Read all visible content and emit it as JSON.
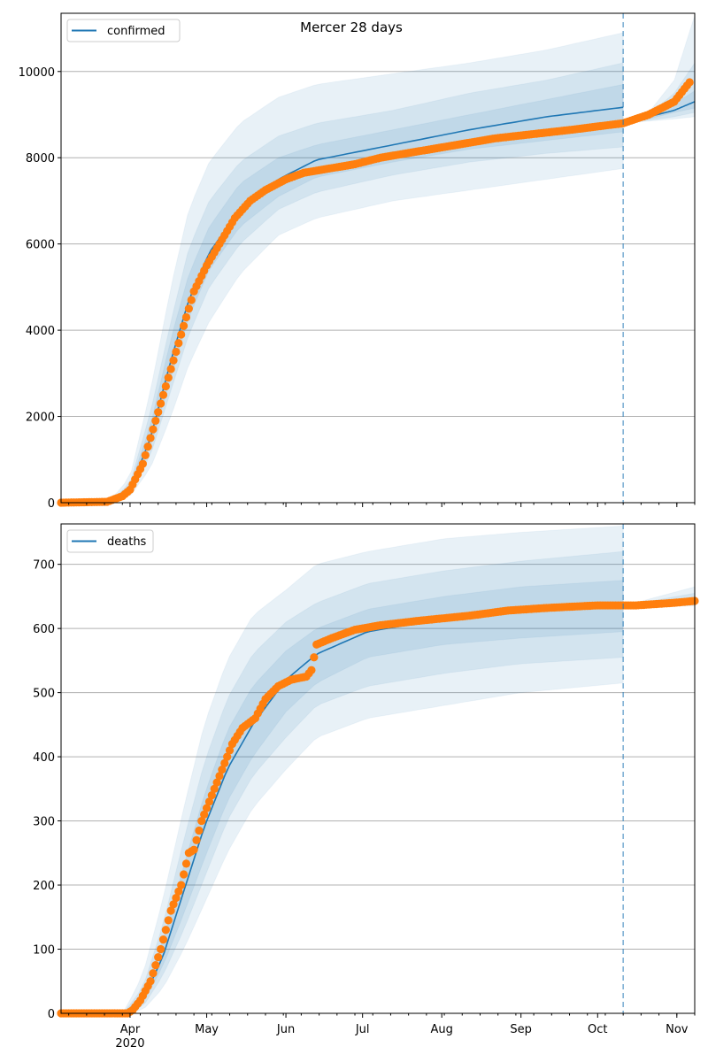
{
  "title": "Mercer 28 days",
  "colors": {
    "model": "#1f77b4",
    "observed": "#ff7f0e",
    "grid": "#b0b0b0"
  },
  "chart_data": [
    {
      "type": "line",
      "name": "confirmed",
      "legend": "confirmed",
      "legend_position": "top-left",
      "x_unit": "days since 2020-03-05",
      "xlim": [
        0,
        248
      ],
      "ylim": [
        0,
        11350
      ],
      "yticks": [
        0,
        2000,
        4000,
        6000,
        8000,
        10000
      ],
      "grid": true,
      "forecast_start_day": 220,
      "fit": {
        "days": [
          0,
          20,
          27,
          35,
          43,
          50,
          58,
          70,
          85,
          100,
          130,
          160,
          190,
          220
        ],
        "median": [
          0,
          50,
          300,
          1500,
          3300,
          4700,
          5800,
          6800,
          7500,
          7950,
          8300,
          8650,
          8950,
          9170
        ],
        "bands": [
          {
            "lo": [
              0,
              20,
              150,
              800,
              2000,
              3200,
              4200,
              5300,
              6200,
              6600,
              7000,
              7250,
              7500,
              7750
            ],
            "hi": [
              0,
              100,
              600,
              2600,
              5000,
              6800,
              7900,
              8800,
              9400,
              9700,
              9950,
              10200,
              10500,
              10900
            ]
          },
          {
            "lo": [
              0,
              30,
              200,
              1100,
              2600,
              3900,
              5000,
              6000,
              6800,
              7200,
              7600,
              7900,
              8100,
              8250
            ],
            "hi": [
              0,
              80,
              450,
              2100,
              4200,
              5900,
              7000,
              7900,
              8500,
              8800,
              9100,
              9500,
              9800,
              10200
            ]
          },
          {
            "lo": [
              0,
              40,
              250,
              1300,
              2900,
              4300,
              5400,
              6400,
              7100,
              7550,
              7900,
              8200,
              8400,
              8600
            ],
            "hi": [
              0,
              60,
              380,
              1800,
              3800,
              5300,
              6400,
              7400,
              8000,
              8300,
              8650,
              9000,
              9350,
              9700
            ]
          }
        ]
      },
      "forecast": {
        "days": [
          220,
          230,
          240,
          248
        ],
        "median": [
          8800,
          8950,
          9100,
          9300
        ],
        "bands": [
          {
            "lo": [
              8800,
              8850,
              8900,
              8950
            ],
            "hi": [
              8800,
              9050,
              9800,
              11300
            ]
          },
          {
            "lo": [
              8800,
              8870,
              8950,
              9050
            ],
            "hi": [
              8800,
              9000,
              9500,
              10200
            ]
          },
          {
            "lo": [
              8800,
              8900,
              9050,
              9150
            ],
            "hi": [
              8800,
              8950,
              9250,
              9550
            ]
          }
        ]
      },
      "observed": {
        "days": [
          0,
          18,
          24,
          27,
          32,
          36,
          40,
          44,
          48,
          52,
          57,
          62,
          68,
          74,
          80,
          88,
          95,
          105,
          115,
          125,
          140,
          155,
          170,
          185,
          200,
          220,
          230,
          240,
          246
        ],
        "values": [
          0,
          20,
          150,
          300,
          900,
          1700,
          2500,
          3300,
          4100,
          4900,
          5500,
          6000,
          6600,
          7000,
          7250,
          7500,
          7650,
          7750,
          7850,
          8000,
          8150,
          8300,
          8450,
          8550,
          8650,
          8800,
          9000,
          9300,
          9750
        ]
      }
    },
    {
      "type": "line",
      "name": "deaths",
      "legend": "deaths",
      "legend_position": "top-left",
      "x_unit": "days since 2020-03-05",
      "xlim": [
        0,
        248
      ],
      "ylim": [
        0,
        763
      ],
      "yticks": [
        0,
        100,
        200,
        300,
        400,
        500,
        600,
        700
      ],
      "grid": true,
      "forecast_start_day": 220,
      "fit": {
        "days": [
          0,
          25,
          32,
          40,
          48,
          56,
          65,
          75,
          88,
          100,
          120,
          150,
          180,
          220
        ],
        "median": [
          0,
          0,
          20,
          90,
          190,
          290,
          380,
          450,
          520,
          560,
          595,
          615,
          625,
          635
        ],
        "bands": [
          {
            "lo": [
              0,
              0,
              5,
              40,
              100,
              170,
              250,
              320,
              380,
              430,
              460,
              480,
              500,
              515
            ],
            "hi": [
              0,
              5,
              60,
              180,
              320,
              450,
              550,
              620,
              660,
              700,
              720,
              740,
              750,
              760
            ]
          },
          {
            "lo": [
              0,
              0,
              10,
              60,
              130,
              210,
              300,
              370,
              430,
              480,
              510,
              530,
              545,
              555
            ],
            "hi": [
              0,
              3,
              40,
              140,
              270,
              390,
              490,
              560,
              610,
              640,
              670,
              690,
              705,
              720
            ]
          },
          {
            "lo": [
              0,
              0,
              15,
              75,
              155,
              240,
              330,
              400,
              470,
              515,
              555,
              575,
              585,
              595
            ],
            "hi": [
              0,
              2,
              30,
              115,
              230,
              340,
              440,
              510,
              565,
              600,
              630,
              650,
              665,
              675
            ]
          }
        ]
      },
      "forecast": {
        "days": [
          220,
          248
        ],
        "median": [
          635,
          645
        ],
        "bands": [
          {
            "lo": [
              635,
              635
            ],
            "hi": [
              635,
              665
            ]
          },
          {
            "lo": [
              635,
              637
            ],
            "hi": [
              635,
              655
            ]
          },
          {
            "lo": [
              635,
              638
            ],
            "hi": [
              635,
              648
            ]
          }
        ]
      },
      "observed": {
        "days": [
          0,
          26,
          28,
          31,
          35,
          39,
          43,
          47,
          50,
          52,
          55,
          59,
          63,
          67,
          71,
          76,
          80,
          85,
          90,
          96,
          98,
          100,
          106,
          115,
          125,
          140,
          160,
          175,
          190,
          210,
          225,
          240,
          248
        ],
        "values": [
          0,
          0,
          5,
          20,
          50,
          100,
          160,
          200,
          250,
          255,
          300,
          340,
          380,
          420,
          445,
          460,
          490,
          510,
          520,
          525,
          535,
          575,
          585,
          598,
          605,
          612,
          620,
          628,
          632,
          636,
          636,
          640,
          643
        ]
      }
    }
  ],
  "xaxis": {
    "months": [
      {
        "label": "Apr",
        "day": 27
      },
      {
        "label": "May",
        "day": 57
      },
      {
        "label": "Jun",
        "day": 88
      },
      {
        "label": "Jul",
        "day": 118
      },
      {
        "label": "Aug",
        "day": 149
      },
      {
        "label": "Sep",
        "day": 180
      },
      {
        "label": "Oct",
        "day": 210
      },
      {
        "label": "Nov",
        "day": 241
      }
    ],
    "year_label": "2020"
  }
}
